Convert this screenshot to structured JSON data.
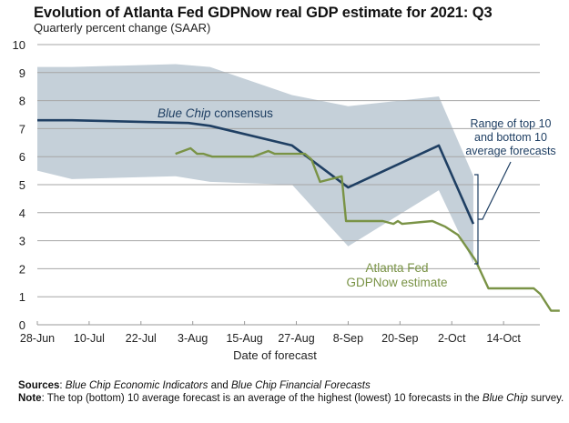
{
  "chart_data": {
    "type": "line",
    "title": "Evolution of Atlanta Fed GDPNow real GDP estimate for 2021: Q3",
    "subtitle": "Quarterly percent change (SAAR)",
    "xlabel": "Date of forecast",
    "ylabel": "",
    "ylim": [
      0,
      10
    ],
    "yticks": [
      "0",
      "1",
      "2",
      "3",
      "4",
      "5",
      "6",
      "7",
      "8",
      "9",
      "10"
    ],
    "xlim_days_from_28jun": [
      0,
      123
    ],
    "xticks": [
      {
        "label": "28-Jun",
        "day": 0
      },
      {
        "label": "10-Jul",
        "day": 12
      },
      {
        "label": "22-Jul",
        "day": 24
      },
      {
        "label": "3-Aug",
        "day": 36
      },
      {
        "label": "15-Aug",
        "day": 48
      },
      {
        "label": "27-Aug",
        "day": 60
      },
      {
        "label": "8-Sep",
        "day": 72
      },
      {
        "label": "20-Sep",
        "day": 84
      },
      {
        "label": "2-Oct",
        "day": 96
      },
      {
        "label": "14-Oct",
        "day": 108
      }
    ],
    "grid": true,
    "band": {
      "name": "Range of top 10 and bottom 10 average forecasts",
      "color": "#c5d0d9",
      "x": [
        0,
        8,
        32,
        40,
        59,
        72,
        93,
        101
      ],
      "upper": [
        9.2,
        9.2,
        9.3,
        9.2,
        8.2,
        7.8,
        8.15,
        5.3
      ],
      "lower": [
        5.5,
        5.2,
        5.3,
        5.1,
        5.0,
        2.8,
        4.8,
        2.2
      ]
    },
    "series": [
      {
        "name": "Blue Chip consensus",
        "color": "#1f3f63",
        "x": [
          0,
          8,
          35,
          40,
          59,
          72,
          93,
          101
        ],
        "values": [
          7.3,
          7.3,
          7.2,
          7.1,
          6.4,
          4.9,
          6.4,
          3.6
        ]
      },
      {
        "name": "Atlanta Fed GDPNow estimate",
        "color": "#7a9346",
        "x": [
          32,
          35.5,
          37,
          38.5,
          40.5,
          50,
          53.5,
          55,
          62,
          63.5,
          65.5,
          70.5,
          71.5,
          80,
          82.5,
          83.5,
          84.5,
          91.5,
          94.5,
          97.5,
          101.5,
          104.5,
          115,
          116.5,
          119,
          121
        ],
        "values": [
          6.1,
          6.3,
          6.1,
          6.1,
          6.0,
          6.0,
          6.2,
          6.1,
          6.1,
          5.9,
          5.1,
          5.3,
          3.7,
          3.7,
          3.6,
          3.7,
          3.6,
          3.7,
          3.5,
          3.2,
          2.3,
          1.3,
          1.3,
          1.1,
          0.5,
          0.5
        ]
      }
    ],
    "annotations": {
      "blue_chip": {
        "italic": "Blue Chip",
        "rest": " consensus"
      },
      "gdpnow_line1": "Atlanta Fed",
      "gdpnow_line2": "GDPNow estimate",
      "range_line1": "Range of top 10",
      "range_line2": "and bottom 10",
      "range_line3": "average forecasts"
    },
    "footer": {
      "sources_label": "Sources",
      "sources_sep": ": ",
      "sources_italic1": "Blue Chip Economic Indicators",
      "sources_and": " and ",
      "sources_italic2": "Blue Chip Financial Forecasts",
      "note_label": "Note",
      "note_text": ": The top (bottom) 10 average forecast is an average of the highest (lowest) 10 forecasts in the ",
      "note_italic": "Blue Chip",
      "note_end": " survey."
    }
  }
}
